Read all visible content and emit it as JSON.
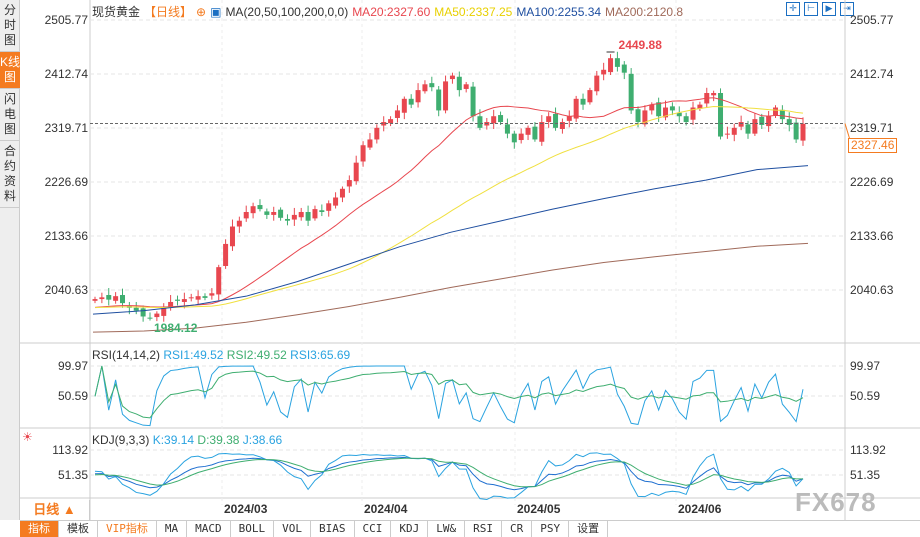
{
  "sidebar": [
    "分时图",
    "K线图",
    "闪电图",
    "合约资料"
  ],
  "header": {
    "title": "现货黄金",
    "period": "【日线】",
    "ma_label": "MA(20,50,100,200,0,0)",
    "ma20": "MA20:2327.60",
    "ma50": "MA50:2337.25",
    "ma100": "MA100:2255.34",
    "ma200": "MA200:2120.8"
  },
  "colors": {
    "up": "#e8474f",
    "down": "#3fae70",
    "ma20": "#e8474f",
    "ma50": "#f0e040",
    "ma100": "#1f4fa0",
    "ma200": "#a06a5a",
    "rsi1": "#2aa3e0",
    "rsi2": "#3fae70",
    "orange": "#f47b20"
  },
  "price_axis": [
    "2505.77",
    "2412.74",
    "2319.71",
    "2226.69",
    "2133.66",
    "2040.63"
  ],
  "current_price": "2327.46",
  "high_label": "2449.88",
  "low_label": "1984.12",
  "rsi": {
    "label": "RSI(14,14,2)",
    "rsi1": "RSI1:49.52",
    "rsi2": "RSI2:49.52",
    "rsi3": "RSI3:65.69",
    "axis": [
      "99.97",
      "50.59"
    ]
  },
  "kdj": {
    "label": "KDJ(9,3,3)",
    "k": "K:39.14",
    "d": "D:39.38",
    "j": "J:38.66",
    "axis": [
      "113.92",
      "51.35"
    ]
  },
  "time_axis": [
    "2024/03",
    "2024/04",
    "2024/05",
    "2024/06"
  ],
  "period_button": "日线 ▲",
  "bottom_tabs": [
    "指标",
    "模板",
    "VIP指标",
    "MA",
    "MACD",
    "BOLL",
    "VOL",
    "BIAS",
    "CCI",
    "KDJ",
    "LW&",
    "RSI",
    "CR",
    "PSY",
    "设置"
  ],
  "watermark": "FX678",
  "chart_data": {
    "type": "candlestick",
    "closes": [
      2025,
      2028,
      2024,
      2030,
      2018,
      2010,
      2005,
      1995,
      1992,
      2000,
      2010,
      2020,
      2022,
      2025,
      2028,
      2030,
      2027,
      2035,
      2080,
      2120,
      2150,
      2160,
      2175,
      2185,
      2180,
      2170,
      2175,
      2165,
      2160,
      2170,
      2175,
      2160,
      2180,
      2175,
      2190,
      2200,
      2215,
      2230,
      2260,
      2290,
      2300,
      2320,
      2330,
      2335,
      2350,
      2370,
      2360,
      2385,
      2395,
      2390,
      2350,
      2400,
      2410,
      2385,
      2395,
      2340,
      2320,
      2330,
      2340,
      2330,
      2310,
      2295,
      2310,
      2320,
      2300,
      2330,
      2340,
      2320,
      2330,
      2340,
      2370,
      2360,
      2385,
      2410,
      2420,
      2440,
      2425,
      2415,
      2350,
      2330,
      2350,
      2360,
      2340,
      2355,
      2350,
      2340,
      2330,
      2355,
      2360,
      2380,
      2380,
      2305,
      2310,
      2320,
      2330,
      2310,
      2335,
      2325,
      2340,
      2355,
      2335,
      2325,
      2300,
      2327
    ],
    "ma100": [
      1999,
      2005,
      2015,
      2030,
      2055,
      2085,
      2115,
      2140,
      2160,
      2180,
      2198,
      2215,
      2230,
      2248,
      2255
    ],
    "ma200": [
      1968,
      1970,
      1975,
      1985,
      1998,
      2012,
      2028,
      2045,
      2060,
      2075,
      2088,
      2098,
      2107,
      2116,
      2121
    ]
  }
}
